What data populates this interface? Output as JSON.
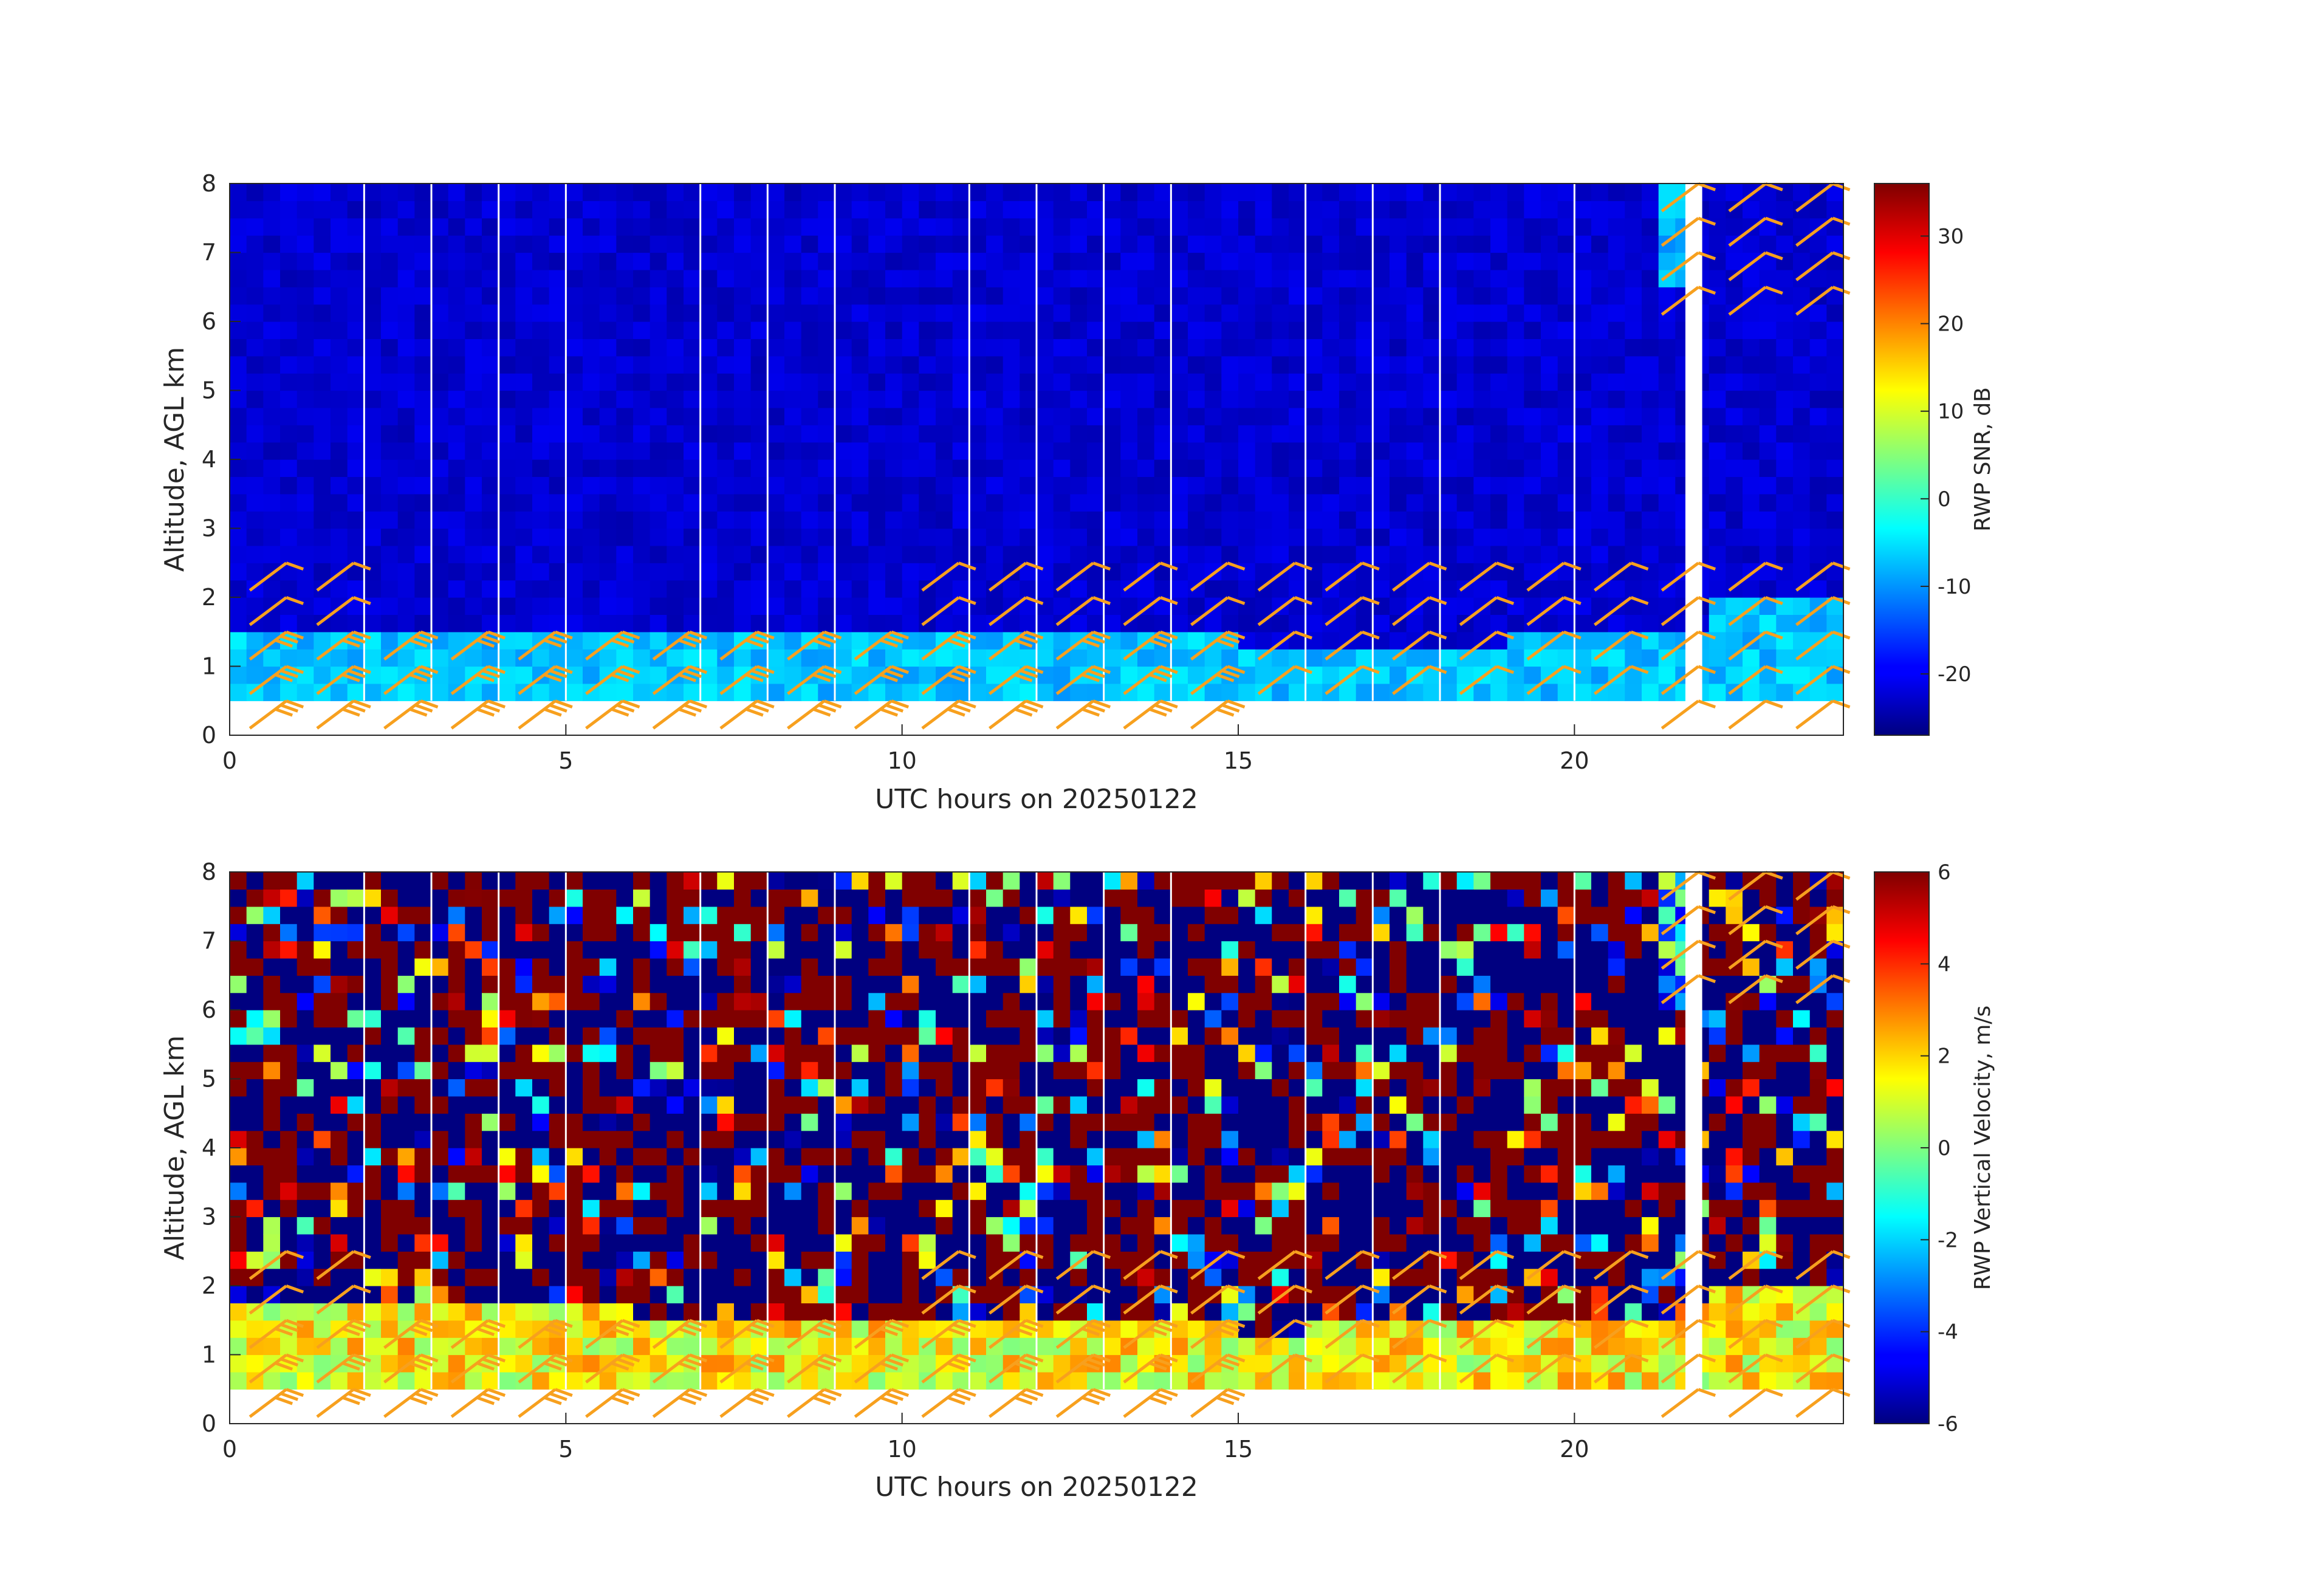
{
  "chart_data": [
    {
      "type": "heatmap",
      "name": "snr-panel",
      "xlabel": "UTC hours on 20250122",
      "ylabel": "Altitude, AGL km",
      "xlim": [
        0,
        24
      ],
      "ylim": [
        0,
        8
      ],
      "xticks": [
        0,
        5,
        10,
        15,
        20
      ],
      "yticks": [
        0,
        1,
        2,
        3,
        4,
        5,
        6,
        7,
        8
      ],
      "colorbar": {
        "label": "RWP SNR, dB",
        "range": [
          -27,
          36
        ],
        "ticks": [
          -20,
          -10,
          0,
          10,
          20,
          30
        ],
        "colormap": "jet"
      },
      "background_value": -22,
      "boundary_layer_top_km": [
        1.5,
        1.5,
        1.5,
        1.5,
        1.5,
        1.45,
        1.4,
        1.4,
        1.35,
        1.3,
        1.5,
        1.5,
        1.45,
        1.4,
        1.3,
        1.2,
        1.2,
        1.2,
        1.2,
        1.3,
        1.3,
        1.3,
        1.9,
        1.9
      ],
      "boundary_layer_value": -7,
      "data_bottom_km": 0.5,
      "gap_hours": [
        2,
        3,
        4,
        5,
        7,
        8,
        9,
        11,
        12,
        13,
        14,
        16,
        17,
        18,
        20
      ],
      "upper_echo_region": {
        "x": [
          21.2,
          21.6
        ],
        "y": [
          6.5,
          8.0
        ],
        "value": -8
      },
      "wind_barbs_color": "#f7a01e",
      "wind_barb_altitudes_km": [
        0.1,
        0.6,
        1.1,
        1.6,
        2.1,
        6.1,
        6.6,
        7.1,
        7.6
      ]
    },
    {
      "type": "heatmap",
      "name": "vertical-velocity-panel",
      "xlabel": "UTC hours on 20250122",
      "ylabel": "Altitude, AGL km",
      "xlim": [
        0,
        24
      ],
      "ylim": [
        0,
        8
      ],
      "xticks": [
        0,
        5,
        10,
        15,
        20
      ],
      "yticks": [
        0,
        1,
        2,
        3,
        4,
        5,
        6,
        7,
        8
      ],
      "colorbar": {
        "label": "RWP Vertical Velocity, m/s",
        "range": [
          -6,
          6
        ],
        "ticks": [
          -6,
          -4,
          -2,
          0,
          2,
          4,
          6
        ],
        "colormap": "jet"
      },
      "background_value": "noise (alternating -6 to +6)",
      "boundary_layer_top_km": [
        1.6,
        1.6,
        1.6,
        1.6,
        1.6,
        1.55,
        1.5,
        1.45,
        1.4,
        1.3,
        1.3,
        1.3,
        1.3,
        1.3,
        1.3,
        1.2,
        1.3,
        1.4,
        1.4,
        1.3,
        1.3,
        1.5,
        2.0,
        2.0
      ],
      "boundary_layer_value": 1.5,
      "data_bottom_km": 0.5,
      "gap_hours": [
        2,
        3,
        4,
        5,
        7,
        8,
        9,
        11,
        12,
        13,
        14,
        16,
        17,
        18,
        20
      ],
      "upper_echo_region": {
        "x": [
          21.2,
          21.6
        ],
        "y": [
          6.0,
          8.0
        ],
        "value": -2
      },
      "wind_barbs_color": "#f7a01e",
      "wind_barb_altitudes_km": [
        0.1,
        0.6,
        1.1,
        1.6,
        2.1,
        6.1,
        6.6,
        7.1,
        7.6
      ]
    }
  ]
}
